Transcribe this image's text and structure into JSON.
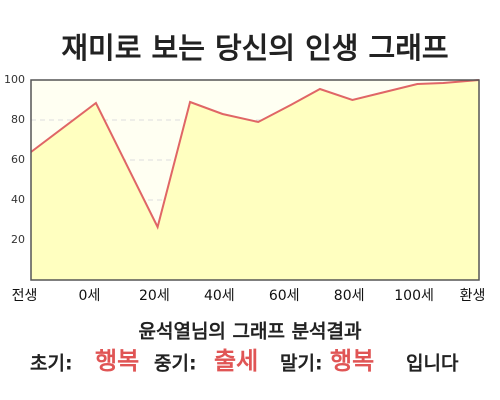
{
  "chart_data": {
    "type": "area",
    "title": "재미로 보는 당신의 인생 그래프",
    "x": [
      -18,
      2,
      21,
      31,
      41,
      52,
      62,
      71,
      81,
      101,
      109,
      120
    ],
    "values": [
      64,
      88.5,
      26.5,
      89,
      83,
      79,
      87.5,
      95.5,
      90,
      98,
      98.5,
      100
    ],
    "color": "#e06666",
    "fill": "#ffffc0",
    "xlim": [
      -18,
      120
    ],
    "xticks": [
      {
        "value": -20,
        "label": "전생"
      },
      {
        "value": 0,
        "label": "0세"
      },
      {
        "value": 20,
        "label": "20세"
      },
      {
        "value": 40,
        "label": "40세"
      },
      {
        "value": 60,
        "label": "60세"
      },
      {
        "value": 80,
        "label": "80세"
      },
      {
        "value": 100,
        "label": "100세"
      },
      {
        "value": 118,
        "label": "환생"
      }
    ],
    "ylim": [
      0,
      100
    ],
    "yticks": [
      20,
      40,
      60,
      80,
      100
    ],
    "grid": true
  },
  "analysis": {
    "heading": "윤석열님의 그래프 분석결과",
    "early_label": "초기:",
    "early_value": "행복",
    "middle_label": "중기:",
    "middle_value": "출세",
    "late_label": "말기:",
    "late_value": "행복",
    "ending": "입니다"
  }
}
